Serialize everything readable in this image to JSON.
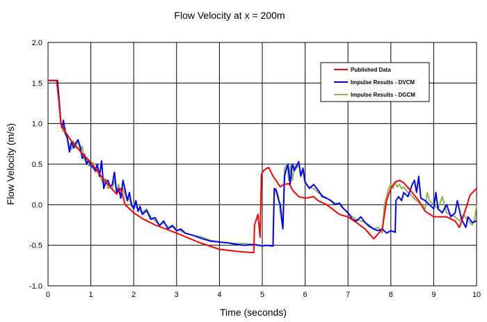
{
  "chart_data": {
    "type": "line",
    "title": "Flow Velocity at x = 200m",
    "xlabel": "Time (seconds)",
    "ylabel": "Flow Velocity (m/s)",
    "xlim": [
      0,
      10
    ],
    "ylim": [
      -1.0,
      2.0
    ],
    "x_ticks": [
      "0",
      "1",
      "2",
      "3",
      "4",
      "5",
      "6",
      "7",
      "8",
      "9",
      "10"
    ],
    "y_ticks": [
      "2.0",
      "1.5",
      "1.0",
      "0.5",
      "0.0",
      "-0.5",
      "-1.0"
    ],
    "grid": true,
    "legend_position": "top-right",
    "series": [
      {
        "name": "Published Data",
        "color": "#ff0000",
        "points": [
          [
            0,
            1.53
          ],
          [
            0.2,
            1.53
          ],
          [
            0.25,
            1.3
          ],
          [
            0.3,
            1.0
          ],
          [
            0.4,
            0.9
          ],
          [
            0.5,
            0.82
          ],
          [
            0.6,
            0.75
          ],
          [
            0.8,
            0.63
          ],
          [
            1.0,
            0.52
          ],
          [
            1.2,
            0.38
          ],
          [
            1.4,
            0.25
          ],
          [
            1.6,
            0.13
          ],
          [
            1.7,
            0.2
          ],
          [
            1.8,
            0.0
          ],
          [
            2.0,
            -0.1
          ],
          [
            2.2,
            -0.17
          ],
          [
            2.5,
            -0.25
          ],
          [
            3.0,
            -0.35
          ],
          [
            3.5,
            -0.46
          ],
          [
            4.0,
            -0.55
          ],
          [
            4.5,
            -0.58
          ],
          [
            4.8,
            -0.59
          ],
          [
            4.82,
            -0.25
          ],
          [
            4.9,
            -0.12
          ],
          [
            4.95,
            -0.4
          ],
          [
            4.98,
            0.38
          ],
          [
            5.05,
            0.43
          ],
          [
            5.15,
            0.46
          ],
          [
            5.25,
            0.35
          ],
          [
            5.32,
            0.3
          ],
          [
            5.42,
            0.22
          ],
          [
            5.5,
            0.25
          ],
          [
            5.62,
            0.26
          ],
          [
            5.72,
            0.17
          ],
          [
            5.85,
            0.1
          ],
          [
            6.0,
            0.08
          ],
          [
            6.2,
            0.1
          ],
          [
            6.3,
            0.05
          ],
          [
            6.5,
            0.0
          ],
          [
            6.8,
            -0.12
          ],
          [
            7.0,
            -0.15
          ],
          [
            7.2,
            -0.22
          ],
          [
            7.4,
            -0.3
          ],
          [
            7.6,
            -0.42
          ],
          [
            7.8,
            -0.3
          ],
          [
            7.9,
            0.05
          ],
          [
            8.0,
            0.2
          ],
          [
            8.1,
            0.28
          ],
          [
            8.2,
            0.3
          ],
          [
            8.3,
            0.27
          ],
          [
            8.45,
            0.18
          ],
          [
            8.65,
            0.05
          ],
          [
            8.8,
            -0.08
          ],
          [
            9.0,
            -0.15
          ],
          [
            9.3,
            -0.15
          ],
          [
            9.5,
            -0.2
          ],
          [
            9.6,
            -0.28
          ],
          [
            9.75,
            -0.05
          ],
          [
            9.85,
            0.12
          ],
          [
            10.0,
            0.2
          ]
        ]
      },
      {
        "name": "Impulse Results - DVCM",
        "color": "#0000ff",
        "points": [
          [
            0,
            1.53
          ],
          [
            0.22,
            1.53
          ],
          [
            0.26,
            1.3
          ],
          [
            0.3,
            1.0
          ],
          [
            0.33,
            0.95
          ],
          [
            0.36,
            1.04
          ],
          [
            0.4,
            0.88
          ],
          [
            0.45,
            0.83
          ],
          [
            0.5,
            0.65
          ],
          [
            0.55,
            0.78
          ],
          [
            0.6,
            0.7
          ],
          [
            0.65,
            0.76
          ],
          [
            0.7,
            0.8
          ],
          [
            0.75,
            0.72
          ],
          [
            0.8,
            0.57
          ],
          [
            0.85,
            0.62
          ],
          [
            0.9,
            0.5
          ],
          [
            0.95,
            0.55
          ],
          [
            1.0,
            0.48
          ],
          [
            1.05,
            0.46
          ],
          [
            1.1,
            0.42
          ],
          [
            1.15,
            0.5
          ],
          [
            1.2,
            0.35
          ],
          [
            1.25,
            0.54
          ],
          [
            1.3,
            0.2
          ],
          [
            1.35,
            0.28
          ],
          [
            1.4,
            0.3
          ],
          [
            1.45,
            0.22
          ],
          [
            1.5,
            0.25
          ],
          [
            1.55,
            0.4
          ],
          [
            1.6,
            0.15
          ],
          [
            1.65,
            0.2
          ],
          [
            1.7,
            0.08
          ],
          [
            1.75,
            0.3
          ],
          [
            1.8,
            0.18
          ],
          [
            1.85,
            0.05
          ],
          [
            1.9,
            0.15
          ],
          [
            1.95,
            0.0
          ],
          [
            2.0,
            -0.05
          ],
          [
            2.05,
            0.05
          ],
          [
            2.1,
            -0.08
          ],
          [
            2.15,
            -0.02
          ],
          [
            2.2,
            -0.12
          ],
          [
            2.3,
            -0.07
          ],
          [
            2.4,
            -0.18
          ],
          [
            2.5,
            -0.16
          ],
          [
            2.6,
            -0.26
          ],
          [
            2.7,
            -0.2
          ],
          [
            2.8,
            -0.3
          ],
          [
            2.9,
            -0.26
          ],
          [
            3.0,
            -0.32
          ],
          [
            3.1,
            -0.3
          ],
          [
            3.2,
            -0.35
          ],
          [
            3.4,
            -0.38
          ],
          [
            3.6,
            -0.42
          ],
          [
            3.8,
            -0.45
          ],
          [
            4.0,
            -0.46
          ],
          [
            4.2,
            -0.47
          ],
          [
            4.4,
            -0.49
          ],
          [
            4.6,
            -0.5
          ],
          [
            4.8,
            -0.49
          ],
          [
            5.0,
            -0.51
          ],
          [
            5.1,
            -0.5
          ],
          [
            5.25,
            -0.51
          ],
          [
            5.28,
            0.2
          ],
          [
            5.32,
            0.18
          ],
          [
            5.38,
            0.06
          ],
          [
            5.42,
            0.0
          ],
          [
            5.48,
            -0.3
          ],
          [
            5.52,
            0.35
          ],
          [
            5.55,
            0.42
          ],
          [
            5.6,
            0.5
          ],
          [
            5.65,
            0.25
          ],
          [
            5.7,
            0.5
          ],
          [
            5.75,
            0.42
          ],
          [
            5.8,
            0.48
          ],
          [
            5.85,
            0.53
          ],
          [
            5.9,
            0.35
          ],
          [
            5.95,
            0.45
          ],
          [
            6.0,
            0.28
          ],
          [
            6.1,
            0.2
          ],
          [
            6.2,
            0.25
          ],
          [
            6.3,
            0.18
          ],
          [
            6.4,
            0.1
          ],
          [
            6.5,
            0.08
          ],
          [
            6.6,
            0.05
          ],
          [
            6.7,
            0.0
          ],
          [
            6.8,
            0.02
          ],
          [
            6.9,
            -0.05
          ],
          [
            7.0,
            -0.1
          ],
          [
            7.1,
            -0.18
          ],
          [
            7.2,
            -0.2
          ],
          [
            7.3,
            -0.15
          ],
          [
            7.4,
            -0.22
          ],
          [
            7.5,
            -0.27
          ],
          [
            7.6,
            -0.3
          ],
          [
            7.7,
            -0.32
          ],
          [
            7.8,
            -0.3
          ],
          [
            7.9,
            -0.35
          ],
          [
            8.0,
            -0.32
          ],
          [
            8.1,
            -0.34
          ],
          [
            8.12,
            0.05
          ],
          [
            8.18,
            0.1
          ],
          [
            8.25,
            0.05
          ],
          [
            8.3,
            0.15
          ],
          [
            8.4,
            0.1
          ],
          [
            8.5,
            0.25
          ],
          [
            8.55,
            0.3
          ],
          [
            8.6,
            0.15
          ],
          [
            8.65,
            0.35
          ],
          [
            8.7,
            0.08
          ],
          [
            8.8,
            0.05
          ],
          [
            8.9,
            0.0
          ],
          [
            9.0,
            -0.05
          ],
          [
            9.05,
            0.15
          ],
          [
            9.1,
            -0.05
          ],
          [
            9.2,
            -0.1
          ],
          [
            9.3,
            0.0
          ],
          [
            9.4,
            -0.15
          ],
          [
            9.5,
            -0.1
          ],
          [
            9.55,
            0.05
          ],
          [
            9.65,
            -0.18
          ],
          [
            9.75,
            -0.28
          ],
          [
            9.8,
            -0.15
          ],
          [
            9.9,
            -0.22
          ],
          [
            10.0,
            -0.2
          ]
        ]
      },
      {
        "name": "Impulse Results - DGCM",
        "color": "#8db552",
        "points": [
          [
            0,
            1.53
          ],
          [
            0.22,
            1.53
          ],
          [
            0.26,
            1.25
          ],
          [
            0.3,
            1.0
          ],
          [
            0.35,
            0.9
          ],
          [
            0.4,
            0.95
          ],
          [
            0.45,
            0.8
          ],
          [
            0.5,
            0.72
          ],
          [
            0.55,
            0.68
          ],
          [
            0.6,
            0.78
          ],
          [
            0.65,
            0.7
          ],
          [
            0.7,
            0.8
          ],
          [
            0.75,
            0.65
          ],
          [
            0.8,
            0.72
          ],
          [
            0.85,
            0.55
          ],
          [
            0.9,
            0.58
          ],
          [
            0.95,
            0.48
          ],
          [
            1.0,
            0.5
          ],
          [
            1.05,
            0.52
          ],
          [
            1.1,
            0.4
          ],
          [
            1.15,
            0.45
          ],
          [
            1.2,
            0.38
          ],
          [
            1.25,
            0.3
          ],
          [
            1.3,
            0.25
          ],
          [
            1.35,
            0.32
          ],
          [
            1.4,
            0.2
          ],
          [
            1.45,
            0.22
          ],
          [
            1.5,
            0.2
          ],
          [
            1.55,
            0.3
          ],
          [
            1.6,
            0.18
          ],
          [
            1.65,
            0.25
          ],
          [
            1.7,
            0.1
          ],
          [
            1.75,
            0.2
          ],
          [
            1.8,
            0.12
          ],
          [
            1.85,
            0.05
          ],
          [
            1.9,
            0.08
          ],
          [
            1.95,
            -0.02
          ],
          [
            2.0,
            0.0
          ],
          [
            2.1,
            -0.05
          ],
          [
            2.2,
            -0.1
          ],
          [
            2.3,
            -0.05
          ],
          [
            2.4,
            -0.15
          ],
          [
            2.5,
            -0.2
          ],
          [
            2.6,
            -0.25
          ],
          [
            2.7,
            -0.22
          ],
          [
            2.8,
            -0.28
          ],
          [
            2.9,
            -0.25
          ],
          [
            3.0,
            -0.3
          ],
          [
            3.2,
            -0.35
          ],
          [
            3.4,
            -0.38
          ],
          [
            3.6,
            -0.4
          ],
          [
            3.8,
            -0.44
          ],
          [
            4.0,
            -0.46
          ],
          [
            4.2,
            -0.47
          ],
          [
            4.4,
            -0.48
          ],
          [
            4.6,
            -0.48
          ],
          [
            4.8,
            -0.49
          ],
          [
            5.0,
            -0.5
          ],
          [
            5.1,
            -0.5
          ],
          [
            5.25,
            -0.51
          ],
          [
            5.28,
            0.15
          ],
          [
            5.32,
            0.2
          ],
          [
            5.38,
            0.1
          ],
          [
            5.42,
            -0.1
          ],
          [
            5.48,
            -0.28
          ],
          [
            5.52,
            0.45
          ],
          [
            5.58,
            0.5
          ],
          [
            5.62,
            0.3
          ],
          [
            5.66,
            0.48
          ],
          [
            5.7,
            0.3
          ],
          [
            5.75,
            0.48
          ],
          [
            5.8,
            0.45
          ],
          [
            5.85,
            0.5
          ],
          [
            5.9,
            0.38
          ],
          [
            5.95,
            0.42
          ],
          [
            6.0,
            0.25
          ],
          [
            6.1,
            0.22
          ],
          [
            6.2,
            0.2
          ],
          [
            6.3,
            0.15
          ],
          [
            6.4,
            0.12
          ],
          [
            6.5,
            0.08
          ],
          [
            6.6,
            0.05
          ],
          [
            6.7,
            0.02
          ],
          [
            6.8,
            0.0
          ],
          [
            6.9,
            -0.05
          ],
          [
            7.0,
            -0.1
          ],
          [
            7.1,
            -0.15
          ],
          [
            7.2,
            -0.18
          ],
          [
            7.3,
            -0.2
          ],
          [
            7.4,
            -0.22
          ],
          [
            7.5,
            -0.25
          ],
          [
            7.6,
            -0.3
          ],
          [
            7.7,
            -0.28
          ],
          [
            7.8,
            -0.35
          ],
          [
            7.85,
            0.0
          ],
          [
            7.9,
            0.1
          ],
          [
            7.95,
            0.2
          ],
          [
            8.0,
            0.25
          ],
          [
            8.05,
            0.2
          ],
          [
            8.1,
            0.28
          ],
          [
            8.15,
            0.22
          ],
          [
            8.2,
            0.25
          ],
          [
            8.25,
            0.2
          ],
          [
            8.3,
            0.22
          ],
          [
            8.4,
            0.15
          ],
          [
            8.5,
            0.1
          ],
          [
            8.6,
            0.05
          ],
          [
            8.7,
            0.0
          ],
          [
            8.8,
            -0.05
          ],
          [
            8.85,
            0.15
          ],
          [
            8.9,
            0.05
          ],
          [
            9.0,
            0.0
          ],
          [
            9.1,
            -0.05
          ],
          [
            9.2,
            0.1
          ],
          [
            9.3,
            -0.1
          ],
          [
            9.4,
            -0.12
          ],
          [
            9.5,
            -0.15
          ],
          [
            9.6,
            -0.2
          ],
          [
            9.7,
            -0.12
          ],
          [
            9.8,
            -0.2
          ],
          [
            9.9,
            -0.25
          ],
          [
            9.95,
            -0.2
          ],
          [
            10.0,
            0.0
          ]
        ]
      }
    ]
  }
}
